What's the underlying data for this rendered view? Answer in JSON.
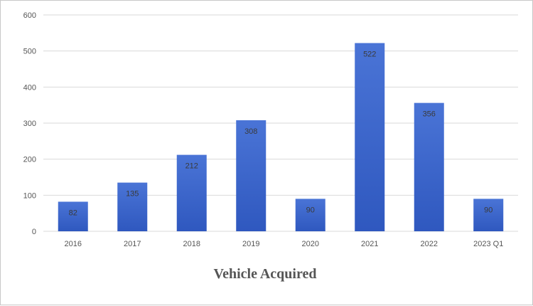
{
  "chart_data": {
    "type": "bar",
    "title": "Vehicle Acquired",
    "xlabel": "",
    "ylabel": "",
    "categories": [
      "2016",
      "2017",
      "2018",
      "2019",
      "2020",
      "2021",
      "2022",
      "2023 Q1"
    ],
    "values": [
      82,
      135,
      212,
      308,
      90,
      522,
      356,
      90
    ],
    "ylim": [
      0,
      600
    ],
    "yticks": [
      0,
      100,
      200,
      300,
      400,
      500,
      600
    ],
    "grid": true,
    "legend": "none",
    "data_labels": true,
    "colors": {
      "bar_top": "#4a74d6",
      "bar_bottom": "#2f58bf",
      "grid": "#d9d9d9"
    }
  }
}
